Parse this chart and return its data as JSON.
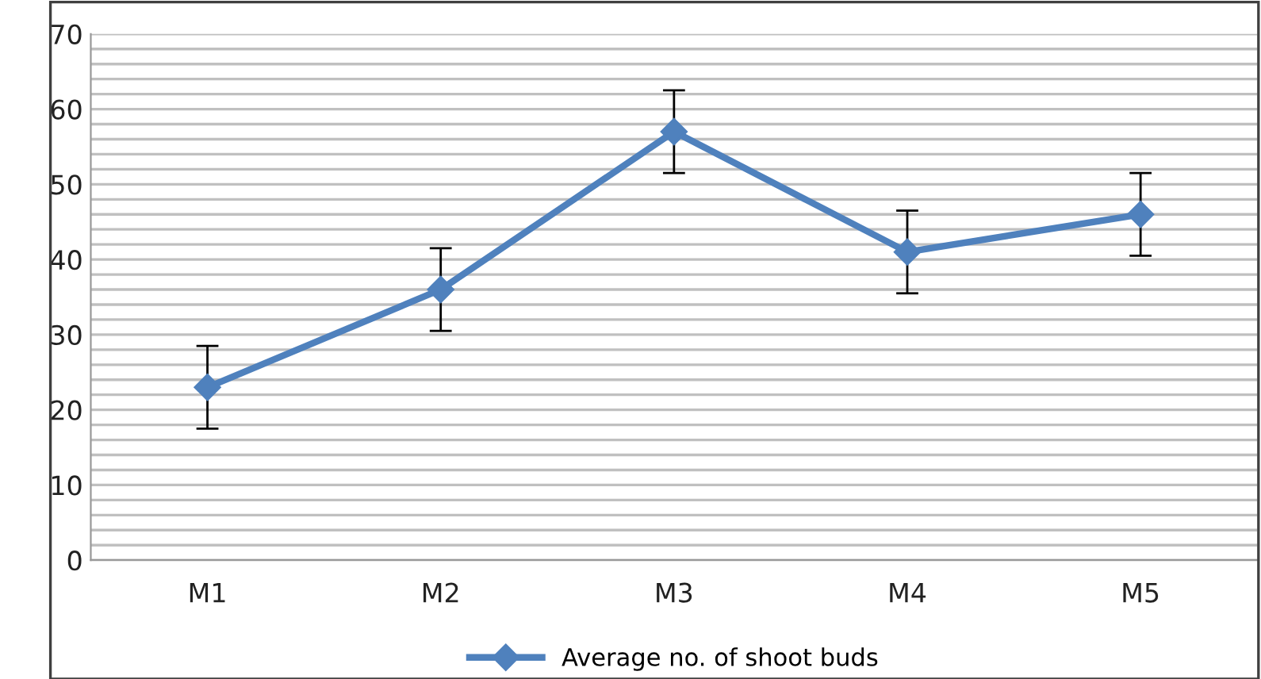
{
  "chart_data": {
    "type": "line",
    "categories": [
      "M1",
      "M2",
      "M3",
      "M4",
      "M5"
    ],
    "series": [
      {
        "name": "Average no. of shoot buds",
        "color": "#4f81bd",
        "values": [
          23,
          36,
          57,
          41,
          46
        ],
        "errors": [
          5.5,
          5.5,
          5.5,
          5.5,
          5.5
        ]
      }
    ],
    "ylim": [
      0,
      70
    ],
    "yticks": [
      0,
      {
        "value": 2,
        "label": null
      },
      {
        "value": 4,
        "label": null
      },
      {
        "value": 6,
        "label": null
      },
      {
        "value": 8,
        "label": null
      },
      10,
      {
        "value": 12,
        "label": null
      },
      {
        "value": 14,
        "label": null
      },
      {
        "value": 16,
        "label": null
      },
      {
        "value": 18,
        "label": null
      },
      20,
      {
        "value": 22,
        "label": null
      },
      {
        "value": 24,
        "label": null
      },
      {
        "value": 26,
        "label": null
      },
      {
        "value": 28,
        "label": null
      },
      30,
      {
        "value": 32,
        "label": null
      },
      {
        "value": 34,
        "label": null
      },
      {
        "value": 36,
        "label": null
      },
      {
        "value": 38,
        "label": null
      },
      40,
      {
        "value": 42,
        "label": null
      },
      {
        "value": 44,
        "label": null
      },
      {
        "value": 46,
        "label": null
      },
      {
        "value": 48,
        "label": null
      },
      50,
      {
        "value": 52,
        "label": null
      },
      {
        "value": 54,
        "label": null
      },
      {
        "value": 56,
        "label": null
      },
      {
        "value": 58,
        "label": null
      },
      60,
      {
        "value": 62,
        "label": null
      },
      {
        "value": 64,
        "label": null
      },
      {
        "value": 66,
        "label": null
      },
      {
        "value": 68,
        "label": null
      },
      70
    ],
    "grid": "y",
    "legend": "bottom",
    "marker": "diamond",
    "line_style": "solid"
  }
}
